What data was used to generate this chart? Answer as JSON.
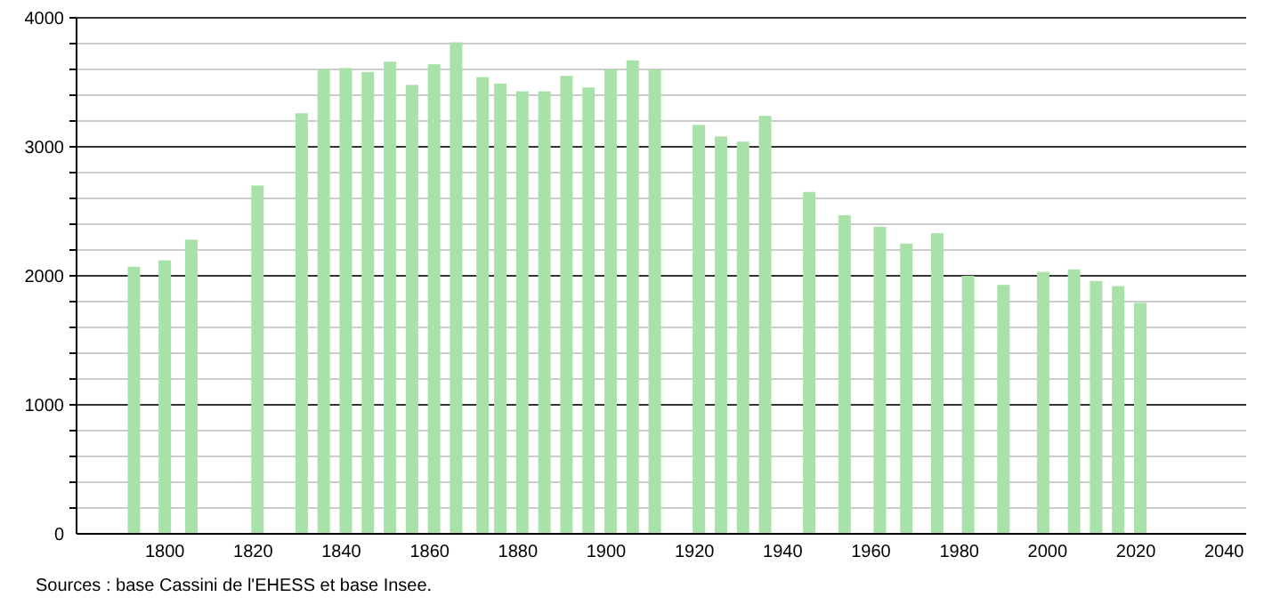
{
  "chart_data": {
    "type": "bar",
    "color": "#a9e2a9",
    "x": [
      1793,
      1800,
      1806,
      1821,
      1831,
      1836,
      1841,
      1846,
      1851,
      1856,
      1861,
      1866,
      1872,
      1876,
      1881,
      1886,
      1891,
      1896,
      1901,
      1906,
      1911,
      1921,
      1926,
      1931,
      1936,
      1946,
      1954,
      1962,
      1968,
      1975,
      1982,
      1990,
      1999,
      2006,
      2011,
      2016,
      2021
    ],
    "values": [
      2070,
      2120,
      2280,
      2700,
      3260,
      3600,
      3610,
      3580,
      3660,
      3480,
      3640,
      3810,
      3540,
      3490,
      3430,
      3430,
      3550,
      3460,
      3600,
      3670,
      3600,
      3170,
      3080,
      3040,
      3240,
      2650,
      2470,
      2380,
      2250,
      2330,
      2000,
      1930,
      2030,
      2050,
      1960,
      1920,
      1790
    ],
    "xlim": [
      1780,
      2045
    ],
    "xticks": [
      1800,
      1820,
      1840,
      1860,
      1880,
      1900,
      1920,
      1940,
      1960,
      1980,
      2000,
      2020,
      2040
    ],
    "ylim": [
      0,
      4000
    ],
    "yticks": [
      0,
      {
        "value": 200,
        "label": null
      },
      {
        "value": 400,
        "label": null
      },
      {
        "value": 600,
        "label": null
      },
      {
        "value": 800,
        "label": null
      },
      1000,
      {
        "value": 1200,
        "label": null
      },
      {
        "value": 1400,
        "label": null
      },
      {
        "value": 1600,
        "label": null
      },
      {
        "value": 1800,
        "label": null
      },
      2000,
      {
        "value": 2200,
        "label": null
      },
      {
        "value": 2400,
        "label": null
      },
      {
        "value": 2600,
        "label": null
      },
      {
        "value": 2800,
        "label": null
      },
      3000,
      {
        "value": 3200,
        "label": null
      },
      {
        "value": 3400,
        "label": null
      },
      {
        "value": 3600,
        "label": null
      },
      {
        "value": 3800,
        "label": null
      },
      4000
    ],
    "grid": "y",
    "annotations": [
      "Sources : base Cassini de l'EHESS et base Insee."
    ]
  }
}
